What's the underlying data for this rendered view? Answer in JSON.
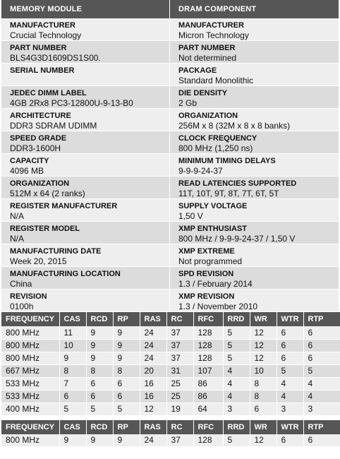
{
  "module": {
    "header": "MEMORY MODULE",
    "fields": [
      {
        "label": "MANUFACTURER",
        "value": "Crucial Technology"
      },
      {
        "label": "PART NUMBER",
        "value": "BLS4G3D1609DS1S00."
      },
      {
        "label": "SERIAL NUMBER",
        "value": ""
      },
      {
        "label": "JEDEC DIMM LABEL",
        "value": "4GB 2Rx8 PC3-12800U-9-13-B0"
      },
      {
        "label": "ARCHITECTURE",
        "value": "DDR3 SDRAM UDIMM"
      },
      {
        "label": "SPEED GRADE",
        "value": "DDR3-1600H"
      },
      {
        "label": "CAPACITY",
        "value": "4096 MB"
      },
      {
        "label": "ORGANIZATION",
        "value": "512M x 64 (2 ranks)"
      },
      {
        "label": "REGISTER MANUFACTURER",
        "value": "N/A"
      },
      {
        "label": "REGISTER MODEL",
        "value": "N/A"
      },
      {
        "label": "MANUFACTURING DATE",
        "value": "Week 20, 2015"
      },
      {
        "label": "MANUFACTURING LOCATION",
        "value": "China"
      },
      {
        "label": "REVISION",
        "value": "0100h"
      }
    ]
  },
  "component": {
    "header": "DRAM COMPONENT",
    "fields": [
      {
        "label": "MANUFACTURER",
        "value": "Micron Technology"
      },
      {
        "label": "PART NUMBER",
        "value": "Not determined"
      },
      {
        "label": "PACKAGE",
        "value": "Standard Monolithic"
      },
      {
        "label": "DIE DENSITY",
        "value": "2 Gb"
      },
      {
        "label": "ORGANIZATION",
        "value": "256M x 8 (32M x 8 x 8 banks)"
      },
      {
        "label": "CLOCK FREQUENCY",
        "value": "800 MHz (1,250 ns)"
      },
      {
        "label": "MINIMUM TIMING DELAYS",
        "value": "9-9-9-24-37"
      },
      {
        "label": "READ LATENCIES SUPPORTED",
        "value": "11T, 10T, 9T, 8T, 7T, 6T, 5T"
      },
      {
        "label": "SUPPLY VOLTAGE",
        "value": "1,50 V"
      },
      {
        "label": "XMP ENTHUSIAST",
        "value": "800 MHz / 9-9-9-24-37 / 1,50 V"
      },
      {
        "label": "XMP EXTREME",
        "value": "Not programmed"
      },
      {
        "label": "SPD REVISION",
        "value": "1.3 / February 2014"
      },
      {
        "label": "XMP REVISION",
        "value": "1.3 / November 2010"
      }
    ]
  },
  "timing_table": {
    "columns": [
      "FREQUENCY",
      "CAS",
      "RCD",
      "RP",
      "RAS",
      "RC",
      "RFC",
      "RRD",
      "WR",
      "WTR",
      "RTP"
    ],
    "rows": [
      [
        "800 MHz",
        "11",
        "9",
        "9",
        "24",
        "37",
        "128",
        "5",
        "12",
        "6",
        "6"
      ],
      [
        "800 MHz",
        "10",
        "9",
        "9",
        "24",
        "37",
        "128",
        "5",
        "12",
        "6",
        "6"
      ],
      [
        "800 MHz",
        "9",
        "9",
        "9",
        "24",
        "37",
        "128",
        "5",
        "12",
        "6",
        "6"
      ],
      [
        "667 MHz",
        "8",
        "8",
        "8",
        "20",
        "31",
        "107",
        "4",
        "10",
        "5",
        "5"
      ],
      [
        "533 MHz",
        "7",
        "6",
        "6",
        "16",
        "25",
        "86",
        "4",
        "8",
        "4",
        "4"
      ],
      [
        "533 MHz",
        "6",
        "6",
        "6",
        "16",
        "25",
        "86",
        "4",
        "8",
        "4",
        "4"
      ],
      [
        "400 MHz",
        "5",
        "5",
        "5",
        "12",
        "19",
        "64",
        "3",
        "6",
        "3",
        "3"
      ]
    ]
  },
  "xmp_table": {
    "columns": [
      "FREQUENCY",
      "CAS",
      "RCD",
      "RP",
      "RAS",
      "RC",
      "RFC",
      "RRD",
      "WR",
      "WTR",
      "RTP"
    ],
    "rows": [
      [
        "800 MHz",
        "9",
        "9",
        "9",
        "24",
        "37",
        "128",
        "5",
        "12",
        "6",
        "6"
      ]
    ]
  }
}
